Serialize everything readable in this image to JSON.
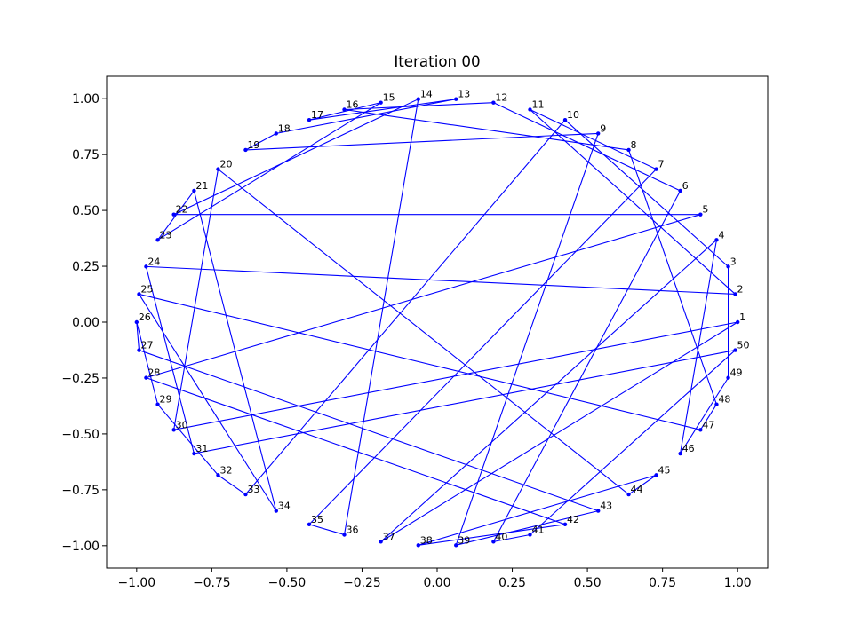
{
  "chart_data": {
    "type": "line",
    "title": "Iteration 00",
    "xlim": [
      -1.1,
      1.1
    ],
    "ylim": [
      -1.1,
      1.1
    ],
    "grid": false,
    "color": "#0000ff",
    "xticks": {
      "values": [
        -1.0,
        -0.75,
        -0.5,
        -0.25,
        0.0,
        0.25,
        0.5,
        0.75,
        1.0
      ],
      "labels": [
        "−1.00",
        "−0.75",
        "−0.50",
        "−0.25",
        "0.00",
        "0.25",
        "0.50",
        "0.75",
        "1.00"
      ]
    },
    "yticks": {
      "values": [
        -1.0,
        -0.75,
        -0.5,
        -0.25,
        0.0,
        0.25,
        0.5,
        0.75,
        1.0
      ],
      "labels": [
        "−1.00",
        "−0.75",
        "−0.50",
        "−0.25",
        "0.00",
        "0.25",
        "0.50",
        "0.75",
        "1.00"
      ]
    },
    "points": [
      {
        "label": "1",
        "x": 1.0,
        "y": 0.0
      },
      {
        "label": "2",
        "x": 0.9921,
        "y": 0.1253
      },
      {
        "label": "3",
        "x": 0.9686,
        "y": 0.2487
      },
      {
        "label": "4",
        "x": 0.9298,
        "y": 0.3681
      },
      {
        "label": "5",
        "x": 0.8763,
        "y": 0.4818
      },
      {
        "label": "6",
        "x": 0.809,
        "y": 0.5878
      },
      {
        "label": "7",
        "x": 0.729,
        "y": 0.6845
      },
      {
        "label": "8",
        "x": 0.6374,
        "y": 0.7705
      },
      {
        "label": "9",
        "x": 0.5358,
        "y": 0.8443
      },
      {
        "label": "10",
        "x": 0.4258,
        "y": 0.9048
      },
      {
        "label": "11",
        "x": 0.309,
        "y": 0.9511
      },
      {
        "label": "12",
        "x": 0.1874,
        "y": 0.9823
      },
      {
        "label": "13",
        "x": 0.0628,
        "y": 0.998
      },
      {
        "label": "14",
        "x": -0.0628,
        "y": 0.998
      },
      {
        "label": "15",
        "x": -0.1874,
        "y": 0.9823
      },
      {
        "label": "16",
        "x": -0.309,
        "y": 0.9511
      },
      {
        "label": "17",
        "x": -0.4258,
        "y": 0.9048
      },
      {
        "label": "18",
        "x": -0.5358,
        "y": 0.8443
      },
      {
        "label": "19",
        "x": -0.6374,
        "y": 0.7705
      },
      {
        "label": "20",
        "x": -0.729,
        "y": 0.6845
      },
      {
        "label": "21",
        "x": -0.809,
        "y": 0.5878
      },
      {
        "label": "22",
        "x": -0.8763,
        "y": 0.4818
      },
      {
        "label": "23",
        "x": -0.9298,
        "y": 0.3681
      },
      {
        "label": "24",
        "x": -0.9686,
        "y": 0.2487
      },
      {
        "label": "25",
        "x": -0.9921,
        "y": 0.1253
      },
      {
        "label": "26",
        "x": -1.0,
        "y": 0.0
      },
      {
        "label": "27",
        "x": -0.9921,
        "y": -0.1253
      },
      {
        "label": "28",
        "x": -0.9686,
        "y": -0.2487
      },
      {
        "label": "29",
        "x": -0.9298,
        "y": -0.3681
      },
      {
        "label": "30",
        "x": -0.8763,
        "y": -0.4818
      },
      {
        "label": "31",
        "x": -0.809,
        "y": -0.5878
      },
      {
        "label": "32",
        "x": -0.729,
        "y": -0.6845
      },
      {
        "label": "33",
        "x": -0.6374,
        "y": -0.7705
      },
      {
        "label": "34",
        "x": -0.5358,
        "y": -0.8443
      },
      {
        "label": "35",
        "x": -0.4258,
        "y": -0.9048
      },
      {
        "label": "36",
        "x": -0.309,
        "y": -0.9511
      },
      {
        "label": "37",
        "x": -0.1874,
        "y": -0.9823
      },
      {
        "label": "38",
        "x": -0.0628,
        "y": -0.998
      },
      {
        "label": "39",
        "x": 0.0628,
        "y": -0.998
      },
      {
        "label": "40",
        "x": 0.1874,
        "y": -0.9823
      },
      {
        "label": "41",
        "x": 0.309,
        "y": -0.9511
      },
      {
        "label": "42",
        "x": 0.4258,
        "y": -0.9048
      },
      {
        "label": "43",
        "x": 0.5358,
        "y": -0.8443
      },
      {
        "label": "44",
        "x": 0.6374,
        "y": -0.7705
      },
      {
        "label": "45",
        "x": 0.729,
        "y": -0.6845
      },
      {
        "label": "46",
        "x": 0.809,
        "y": -0.5878
      },
      {
        "label": "47",
        "x": 0.8763,
        "y": -0.4818
      },
      {
        "label": "48",
        "x": 0.9298,
        "y": -0.3681
      },
      {
        "label": "49",
        "x": 0.9686,
        "y": -0.2487
      },
      {
        "label": "50",
        "x": 0.9921,
        "y": -0.1253
      }
    ],
    "tour": [
      1,
      37,
      4,
      46,
      49,
      3,
      10,
      33,
      32,
      29,
      26,
      27,
      43,
      39,
      9,
      19,
      18,
      13,
      17,
      15,
      23,
      21,
      34,
      25,
      47,
      48,
      8,
      16,
      12,
      6,
      40,
      41,
      50,
      31,
      24,
      2,
      11,
      7,
      35,
      36,
      14,
      22,
      5,
      28,
      42,
      38,
      45,
      44,
      20,
      30,
      1
    ]
  }
}
